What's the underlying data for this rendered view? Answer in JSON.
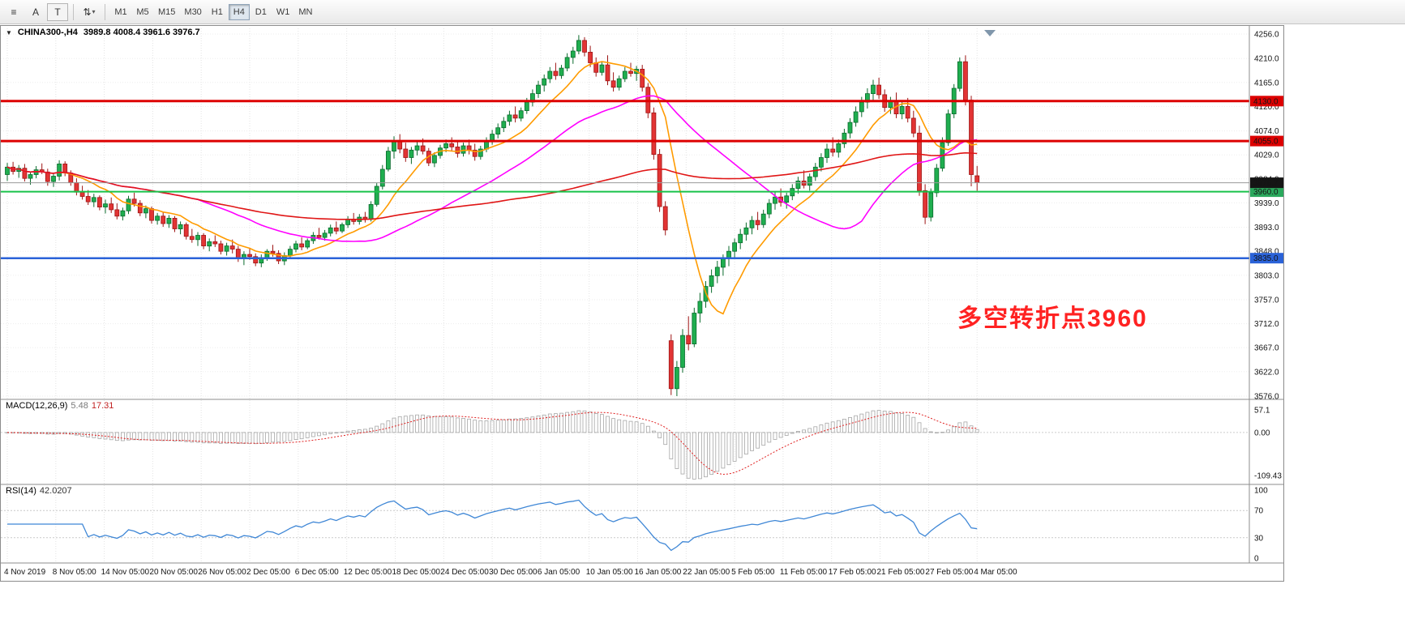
{
  "toolbar": {
    "tools": [
      {
        "id": "chart-list",
        "glyph": "≡"
      },
      {
        "id": "text-label",
        "glyph": "A"
      },
      {
        "id": "text-tool",
        "glyph": "T"
      },
      {
        "id": "indicators",
        "glyph": "⇅"
      }
    ],
    "dropdown_caret": "▾",
    "timeframes": [
      "M1",
      "M5",
      "M15",
      "M30",
      "H1",
      "H4",
      "D1",
      "W1",
      "MN"
    ],
    "active_timeframe": "H4"
  },
  "chart": {
    "menu_icon": "▼",
    "title_symbol": "CHINA300-,H4",
    "title_ohlc": "3989.8 4008.4 3961.6 3976.7",
    "annotation": {
      "text": "多空转折点3960",
      "color": "#ff2222"
    }
  },
  "chart_data": {
    "type": "candlestick",
    "symbol": "CHINA300",
    "timeframe": "H4",
    "y_range": [
      3576.0,
      4256.0
    ],
    "y_ticks": [
      "4256.0",
      "4210.0",
      "4165.0",
      "4120.0",
      "4074.0",
      "4029.0",
      "3984.0",
      "3939.0",
      "3893.0",
      "3848.0",
      "3803.0",
      "3757.0",
      "3712.0",
      "3667.0",
      "3622.0",
      "3576.0"
    ],
    "x_labels": [
      "4 Nov 2019",
      "8 Nov 05:00",
      "14 Nov 05:00",
      "20 Nov 05:00",
      "26 Nov 05:00",
      "2 Dec 05:00",
      "6 Dec 05:00",
      "12 Dec 05:00",
      "18 Dec 05:00",
      "24 Dec 05:00",
      "30 Dec 05:00",
      "6 Jan 05:00",
      "10 Jan 05:00",
      "16 Jan 05:00",
      "22 Jan 05:00",
      "5 Feb 05:00",
      "11 Feb 05:00",
      "17 Feb 05:00",
      "21 Feb 05:00",
      "27 Feb 05:00",
      "4 Mar 05:00"
    ],
    "up_color": "#1fae4f",
    "up_stroke": "#0b6b2d",
    "down_color": "#e23434",
    "down_stroke": "#9e1414",
    "hlines": [
      {
        "price": 4130.0,
        "label": "4130.0",
        "color": "#dd0000",
        "width": 3,
        "tag_bg": "#dd0000"
      },
      {
        "price": 4055.0,
        "label": "4055.0",
        "color": "#dd0000",
        "width": 3,
        "tag_bg": "#dd0000"
      },
      {
        "price": 3960.0,
        "label": "3960.0",
        "color": "#19c24a",
        "width": 2,
        "tag_bg": "#2aa85c"
      },
      {
        "price": 3835.0,
        "label": "3835.0",
        "color": "#2a62d8",
        "width": 2.5,
        "tag_bg": "#2a62d8"
      }
    ],
    "bid_line": {
      "price": 3976.7,
      "label": "3976.7",
      "color": "#9a9a9a",
      "tag_bg": "#151515"
    },
    "ma_lines": [
      {
        "period": 10,
        "color": "#ff9b00"
      },
      {
        "period": 34,
        "color": "#ff00ff"
      },
      {
        "period": 89,
        "color": "#e01616"
      }
    ],
    "candles": [
      [
        3992,
        4014,
        3980,
        4006
      ],
      [
        4006,
        4016,
        3992,
        3998
      ],
      [
        3998,
        4010,
        3986,
        4004
      ],
      [
        4004,
        4012,
        3979,
        3985
      ],
      [
        3985,
        3998,
        3973,
        3992
      ],
      [
        3992,
        4008,
        3985,
        4001
      ],
      [
        4001,
        4013,
        3993,
        3997
      ],
      [
        3997,
        4003,
        3971,
        3979
      ],
      [
        3979,
        3994,
        3969,
        3989
      ],
      [
        3989,
        4019,
        3981,
        4012
      ],
      [
        4012,
        4017,
        3989,
        3995
      ],
      [
        3995,
        4000,
        3971,
        3977
      ],
      [
        3977,
        3985,
        3953,
        3959
      ],
      [
        3959,
        3971,
        3945,
        3951
      ],
      [
        3951,
        3963,
        3935,
        3941
      ],
      [
        3941,
        3956,
        3931,
        3949
      ],
      [
        3949,
        3953,
        3925,
        3931
      ],
      [
        3931,
        3945,
        3919,
        3937
      ],
      [
        3937,
        3949,
        3920,
        3926
      ],
      [
        3926,
        3938,
        3908,
        3914
      ],
      [
        3914,
        3930,
        3906,
        3924
      ],
      [
        3924,
        3952,
        3918,
        3946
      ],
      [
        3946,
        3958,
        3932,
        3938
      ],
      [
        3938,
        3944,
        3914,
        3920
      ],
      [
        3920,
        3934,
        3910,
        3928
      ],
      [
        3928,
        3932,
        3900,
        3906
      ],
      [
        3906,
        3920,
        3898,
        3914
      ],
      [
        3914,
        3922,
        3894,
        3900
      ],
      [
        3900,
        3916,
        3892,
        3910
      ],
      [
        3910,
        3914,
        3884,
        3890
      ],
      [
        3890,
        3904,
        3880,
        3898
      ],
      [
        3898,
        3902,
        3870,
        3876
      ],
      [
        3876,
        3890,
        3864,
        3870
      ],
      [
        3870,
        3884,
        3858,
        3878
      ],
      [
        3878,
        3882,
        3852,
        3858
      ],
      [
        3858,
        3872,
        3848,
        3866
      ],
      [
        3866,
        3878,
        3856,
        3862
      ],
      [
        3862,
        3868,
        3842,
        3848
      ],
      [
        3848,
        3864,
        3840,
        3858
      ],
      [
        3858,
        3870,
        3844,
        3852
      ],
      [
        3852,
        3858,
        3828,
        3834
      ],
      [
        3834,
        3848,
        3822,
        3842
      ],
      [
        3842,
        3854,
        3832,
        3838
      ],
      [
        3838,
        3844,
        3820,
        3826
      ],
      [
        3826,
        3842,
        3818,
        3836
      ],
      [
        3836,
        3852,
        3830,
        3848
      ],
      [
        3848,
        3860,
        3838,
        3844
      ],
      [
        3844,
        3850,
        3824,
        3830
      ],
      [
        3830,
        3846,
        3822,
        3840
      ],
      [
        3840,
        3858,
        3834,
        3852
      ],
      [
        3852,
        3868,
        3846,
        3862
      ],
      [
        3862,
        3874,
        3850,
        3856
      ],
      [
        3856,
        3872,
        3852,
        3868
      ],
      [
        3868,
        3884,
        3862,
        3878
      ],
      [
        3878,
        3892,
        3870,
        3874
      ],
      [
        3874,
        3888,
        3868,
        3882
      ],
      [
        3882,
        3898,
        3876,
        3892
      ],
      [
        3892,
        3904,
        3880,
        3886
      ],
      [
        3886,
        3902,
        3882,
        3898
      ],
      [
        3898,
        3914,
        3892,
        3908
      ],
      [
        3908,
        3920,
        3898,
        3904
      ],
      [
        3904,
        3918,
        3898,
        3912
      ],
      [
        3912,
        3922,
        3902,
        3908
      ],
      [
        3908,
        3942,
        3904,
        3936
      ],
      [
        3936,
        3976,
        3932,
        3970
      ],
      [
        3970,
        4010,
        3964,
        4002
      ],
      [
        4002,
        4044,
        3998,
        4036
      ],
      [
        4036,
        4064,
        4022,
        4056
      ],
      [
        4056,
        4068,
        4032,
        4040
      ],
      [
        4040,
        4052,
        4016,
        4024
      ],
      [
        4024,
        4044,
        4012,
        4038
      ],
      [
        4038,
        4056,
        4028,
        4046
      ],
      [
        4046,
        4060,
        4030,
        4036
      ],
      [
        4036,
        4042,
        4008,
        4014
      ],
      [
        4014,
        4034,
        4006,
        4028
      ],
      [
        4028,
        4048,
        4022,
        4042
      ],
      [
        4042,
        4058,
        4034,
        4050
      ],
      [
        4050,
        4062,
        4036,
        4044
      ],
      [
        4044,
        4054,
        4024,
        4032
      ],
      [
        4032,
        4052,
        4026,
        4046
      ],
      [
        4046,
        4058,
        4030,
        4038
      ],
      [
        4038,
        4050,
        4018,
        4026
      ],
      [
        4026,
        4046,
        4020,
        4040
      ],
      [
        4040,
        4062,
        4034,
        4056
      ],
      [
        4056,
        4076,
        4048,
        4068
      ],
      [
        4068,
        4088,
        4060,
        4080
      ],
      [
        4080,
        4100,
        4072,
        4092
      ],
      [
        4092,
        4112,
        4084,
        4104
      ],
      [
        4104,
        4120,
        4090,
        4098
      ],
      [
        4098,
        4118,
        4092,
        4112
      ],
      [
        4112,
        4136,
        4106,
        4128
      ],
      [
        4128,
        4152,
        4120,
        4144
      ],
      [
        4144,
        4168,
        4136,
        4160
      ],
      [
        4160,
        4180,
        4148,
        4172
      ],
      [
        4172,
        4194,
        4164,
        4186
      ],
      [
        4186,
        4202,
        4170,
        4178
      ],
      [
        4178,
        4198,
        4172,
        4192
      ],
      [
        4192,
        4220,
        4186,
        4212
      ],
      [
        4212,
        4232,
        4200,
        4224
      ],
      [
        4224,
        4254,
        4218,
        4244
      ],
      [
        4244,
        4250,
        4214,
        4222
      ],
      [
        4222,
        4234,
        4194,
        4202
      ],
      [
        4202,
        4212,
        4176,
        4184
      ],
      [
        4184,
        4204,
        4178,
        4198
      ],
      [
        4198,
        4216,
        4160,
        4168
      ],
      [
        4168,
        4184,
        4148,
        4156
      ],
      [
        4156,
        4178,
        4150,
        4172
      ],
      [
        4172,
        4194,
        4166,
        4186
      ],
      [
        4186,
        4202,
        4176,
        4182
      ],
      [
        4182,
        4196,
        4168,
        4190
      ],
      [
        4190,
        4198,
        4148,
        4156
      ],
      [
        4156,
        4164,
        4098,
        4108
      ],
      [
        4108,
        4118,
        4020,
        4030
      ],
      [
        4030,
        4040,
        3922,
        3932
      ],
      [
        3932,
        3942,
        3878,
        3888
      ],
      [
        3680,
        3692,
        3578,
        3590
      ],
      [
        3590,
        3642,
        3576,
        3630
      ],
      [
        3630,
        3702,
        3620,
        3690
      ],
      [
        3690,
        3726,
        3662,
        3674
      ],
      [
        3674,
        3742,
        3668,
        3732
      ],
      [
        3732,
        3770,
        3714,
        3754
      ],
      [
        3754,
        3792,
        3742,
        3782
      ],
      [
        3782,
        3814,
        3770,
        3802
      ],
      [
        3802,
        3830,
        3788,
        3818
      ],
      [
        3818,
        3842,
        3802,
        3834
      ],
      [
        3834,
        3858,
        3820,
        3848
      ],
      [
        3848,
        3872,
        3836,
        3864
      ],
      [
        3864,
        3890,
        3852,
        3880
      ],
      [
        3880,
        3902,
        3868,
        3892
      ],
      [
        3892,
        3914,
        3880,
        3906
      ],
      [
        3906,
        3922,
        3888,
        3898
      ],
      [
        3898,
        3926,
        3892,
        3918
      ],
      [
        3918,
        3946,
        3910,
        3938
      ],
      [
        3938,
        3960,
        3926,
        3950
      ],
      [
        3950,
        3966,
        3932,
        3940
      ],
      [
        3940,
        3958,
        3928,
        3952
      ],
      [
        3952,
        3974,
        3944,
        3966
      ],
      [
        3966,
        3988,
        3956,
        3980
      ],
      [
        3980,
        4000,
        3966,
        3972
      ],
      [
        3972,
        3994,
        3962,
        3988
      ],
      [
        3988,
        4014,
        3980,
        4006
      ],
      [
        4006,
        4032,
        3998,
        4024
      ],
      [
        4024,
        4050,
        4014,
        4040
      ],
      [
        4040,
        4062,
        4026,
        4034
      ],
      [
        4034,
        4058,
        4024,
        4050
      ],
      [
        4050,
        4078,
        4042,
        4070
      ],
      [
        4070,
        4098,
        4060,
        4090
      ],
      [
        4090,
        4120,
        4082,
        4110
      ],
      [
        4110,
        4138,
        4100,
        4128
      ],
      [
        4128,
        4154,
        4116,
        4144
      ],
      [
        4144,
        4170,
        4132,
        4160
      ],
      [
        4160,
        4174,
        4134,
        4142
      ],
      [
        4142,
        4152,
        4110,
        4118
      ],
      [
        4118,
        4138,
        4106,
        4130
      ],
      [
        4130,
        4146,
        4098,
        4106
      ],
      [
        4106,
        4128,
        4096,
        4120
      ],
      [
        4120,
        4136,
        4090,
        4098
      ],
      [
        4098,
        4112,
        4062,
        4070
      ],
      [
        4070,
        4084,
        3952,
        3962
      ],
      [
        3962,
        3974,
        3899,
        3912
      ],
      [
        3912,
        3966,
        3904,
        3958
      ],
      [
        3958,
        4012,
        3950,
        4004
      ],
      [
        4004,
        4062,
        3998,
        4052
      ],
      [
        4052,
        4114,
        4046,
        4106
      ],
      [
        4106,
        4162,
        4098,
        4154
      ],
      [
        4154,
        4212,
        4148,
        4204
      ],
      [
        4204,
        4216,
        4122,
        4132
      ],
      [
        4132,
        4140,
        3970,
        3992
      ],
      [
        3989.8,
        4008.4,
        3961.6,
        3976.7
      ]
    ],
    "macd": {
      "label": "MACD(12,26,9)",
      "main_value": "5.48",
      "signal_value": "17.31",
      "params": [
        12,
        26,
        9
      ],
      "ylim": [
        -120,
        70
      ],
      "ticks": [
        "57.1",
        "0.00",
        "-109.43"
      ],
      "signal_color": "#e02020",
      "hist_color": "#a6a6a6"
    },
    "rsi": {
      "label": "RSI(14)",
      "value": "42.0207",
      "period": 14,
      "ticks": [
        "100",
        "70",
        "30",
        "0"
      ],
      "levels": [
        70,
        30
      ],
      "color": "#3f87d6"
    }
  }
}
